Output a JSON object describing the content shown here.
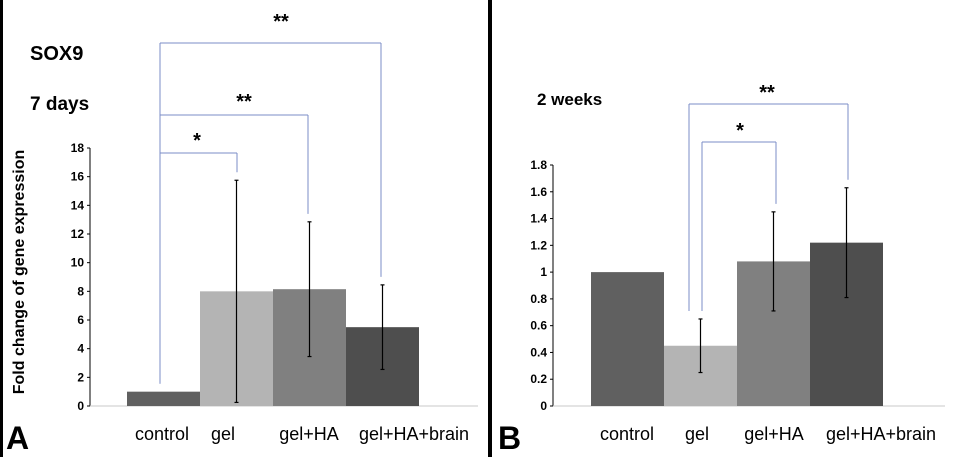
{
  "figure_title": "SOX9",
  "y_axis_label": "Fold change of gene expression",
  "colors": {
    "control_A": "#606060",
    "gel": "#b4b4b4",
    "gel_HA": "#808080",
    "gel_HA_brain": "#4e4e4e",
    "control_B": "#606060",
    "bracket": "#7b8cc7",
    "error": "#000000"
  },
  "chart_data": [
    {
      "type": "bar",
      "panel_letter": "A",
      "title": "7 days",
      "ylabel": "Fold change of gene expression",
      "categories": [
        "control",
        "gel",
        "gel+HA",
        "gel+HA+brain"
      ],
      "values": [
        1.0,
        8.0,
        8.15,
        5.5
      ],
      "errors": [
        0.0,
        7.75,
        4.7,
        2.95
      ],
      "ylim": [
        0,
        18
      ],
      "yticks": [
        0,
        2,
        4,
        6,
        8,
        10,
        12,
        14,
        16,
        18
      ],
      "ytick_labels": [
        "0",
        "2",
        "4",
        "6",
        "8",
        "10",
        "12",
        "14",
        "16",
        "18"
      ],
      "significance": [
        {
          "from": "control",
          "to": "gel",
          "label": "*"
        },
        {
          "from": "control",
          "to": "gel+HA",
          "label": "**"
        },
        {
          "from": "control",
          "to": "gel+HA+brain",
          "label": "**"
        }
      ]
    },
    {
      "type": "bar",
      "panel_letter": "B",
      "title": "2 weeks",
      "categories": [
        "control",
        "gel",
        "gel+HA",
        "gel+HA+brain"
      ],
      "values": [
        1.0,
        0.45,
        1.08,
        1.22
      ],
      "errors": [
        0.0,
        0.2,
        0.37,
        0.41
      ],
      "ylim": [
        0,
        1.8
      ],
      "yticks": [
        0,
        0.2,
        0.4,
        0.6,
        0.8,
        1.0,
        1.2,
        1.4,
        1.6,
        1.8
      ],
      "ytick_labels": [
        "0",
        "0.2",
        "0.4",
        "0.6",
        "0.8",
        "1",
        "1.2",
        "1.4",
        "1.6",
        "1.8"
      ],
      "significance": [
        {
          "from": "gel",
          "to": "gel+HA",
          "label": "*"
        },
        {
          "from": "gel",
          "to": "gel+HA+brain",
          "label": "**"
        }
      ]
    }
  ]
}
